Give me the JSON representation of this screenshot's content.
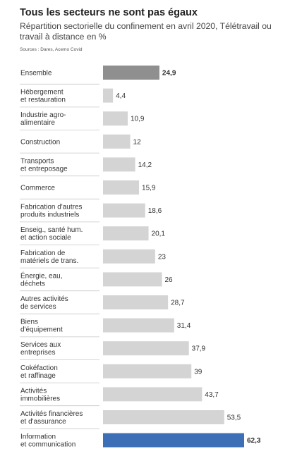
{
  "chart_data": {
    "type": "bar",
    "orientation": "horizontal",
    "title": "Tous les secteurs ne sont pas égaux",
    "subtitle": "Répartition sectorielle du confinement en avril 2020, Télétravail ou travail à distance en %",
    "source": "Sources : Dares, Acemo Covid",
    "categories": [
      [
        "Ensemble"
      ],
      [
        "Hébergement",
        "et restauration"
      ],
      [
        "Industrie agro-",
        "alimentaire"
      ],
      [
        "Construction"
      ],
      [
        "Transports",
        "et entreposage"
      ],
      [
        "Commerce"
      ],
      [
        "Fabrication d'autres",
        "produits industriels"
      ],
      [
        "Enseig., santé hum.",
        "et action sociale"
      ],
      [
        "Fabrication de",
        "matériels de trans."
      ],
      [
        "Énergie, eau,",
        "déchets"
      ],
      [
        "Autres activités",
        "de services"
      ],
      [
        "Biens",
        "d'équipement"
      ],
      [
        "Services aux",
        "entreprises"
      ],
      [
        "Cokéfaction",
        "et raffinage"
      ],
      [
        "Activités",
        "immobilières"
      ],
      [
        "Activités financières",
        "et d'assurance"
      ],
      [
        "Information",
        "et communication"
      ]
    ],
    "values": [
      24.9,
      4.4,
      10.9,
      12,
      14.2,
      15.9,
      18.6,
      20.1,
      23,
      26,
      28.7,
      31.4,
      37.9,
      39,
      43.7,
      53.5,
      62.3
    ],
    "value_labels": [
      "24,9",
      "4,4",
      "10,9",
      "12",
      "14,2",
      "15,9",
      "18,6",
      "20,1",
      "23",
      "26",
      "28,7",
      "31,4",
      "37,9",
      "39",
      "43,7",
      "53,5",
      "62,3"
    ],
    "bar_colors": [
      "#8f8f8f",
      "#d4d4d4",
      "#d4d4d4",
      "#d4d4d4",
      "#d4d4d4",
      "#d4d4d4",
      "#d4d4d4",
      "#d4d4d4",
      "#d4d4d4",
      "#d4d4d4",
      "#d4d4d4",
      "#d4d4d4",
      "#d4d4d4",
      "#d4d4d4",
      "#d4d4d4",
      "#d4d4d4",
      "#3d6fb6"
    ],
    "highlighted": [
      0,
      16
    ],
    "xlim": [
      0,
      62.3
    ],
    "grid": false,
    "legend": "none"
  }
}
